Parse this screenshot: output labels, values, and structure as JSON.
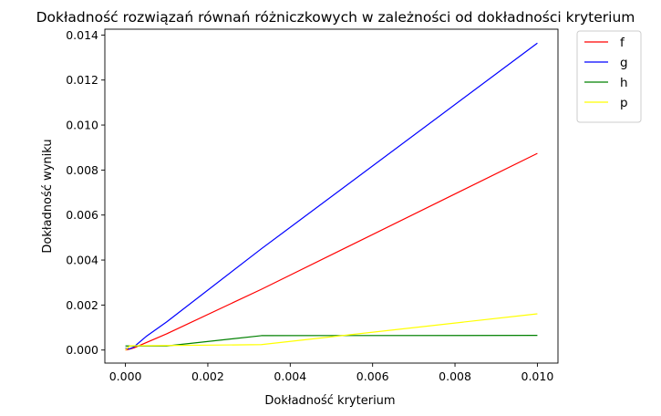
{
  "chart_data": {
    "type": "line",
    "title": "Dokładność rozwiązań równań różniczkowych w zależności od dokładności kryterium",
    "xlabel": "Dokładność kryterium",
    "ylabel": "Dokładność wyniku",
    "xlim": [
      -0.0005,
      0.0105
    ],
    "ylim": [
      -0.00058,
      0.01426
    ],
    "xticks": [
      0.0,
      0.002,
      0.004,
      0.006,
      0.008,
      0.01
    ],
    "xtick_labels": [
      "0.000",
      "0.002",
      "0.004",
      "0.006",
      "0.008",
      "0.010"
    ],
    "yticks": [
      0.0,
      0.002,
      0.004,
      0.006,
      0.008,
      0.01,
      0.012,
      0.014
    ],
    "ytick_labels": [
      "0.000",
      "0.002",
      "0.004",
      "0.006",
      "0.008",
      "0.010",
      "0.012",
      "0.014"
    ],
    "grid": false,
    "legend_position": "outside-top-right",
    "series": [
      {
        "name": "f",
        "color": "#ff0000",
        "x": [
          0.0,
          0.0001,
          0.0002,
          0.001,
          0.0033,
          0.01
        ],
        "y": [
          0.0,
          4e-05,
          9e-05,
          0.00072,
          0.0027,
          0.00874
        ]
      },
      {
        "name": "g",
        "color": "#0000ff",
        "x": [
          0.0,
          0.0001,
          0.0002,
          0.0005,
          0.001,
          0.0033,
          0.01
        ],
        "y": [
          8e-05,
          5e-05,
          0.00013,
          0.0006,
          0.00125,
          0.0045,
          0.01364
        ]
      },
      {
        "name": "h",
        "color": "#008000",
        "x": [
          0.0,
          0.0001,
          0.0002,
          0.001,
          0.0033,
          0.01
        ],
        "y": [
          0.00018,
          0.00018,
          0.00018,
          0.00018,
          0.00064,
          0.00065
        ]
      },
      {
        "name": "p",
        "color": "#ffff00",
        "x": [
          0.0,
          0.0001,
          0.0002,
          0.001,
          0.0033,
          0.01
        ],
        "y": [
          0.0,
          0.00018,
          0.00019,
          0.0002,
          0.00024,
          0.00161
        ]
      }
    ]
  }
}
